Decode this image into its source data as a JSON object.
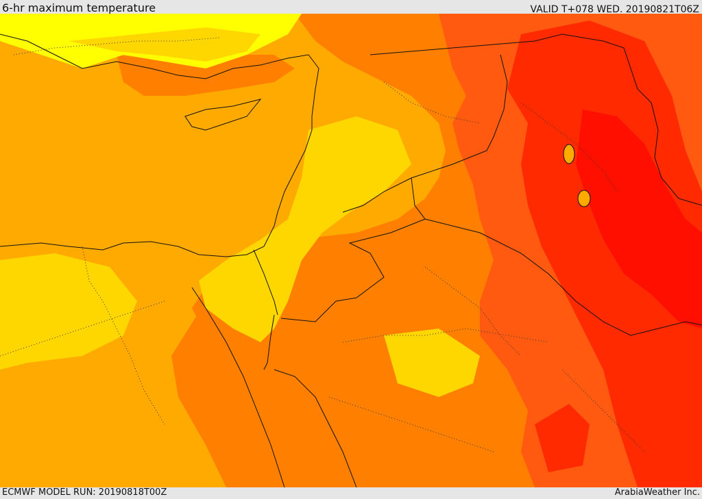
{
  "header": {
    "title": "6-hr maximum temperature",
    "valid": "VALID T+078 WED. 20190821T06Z"
  },
  "footer": {
    "model_run": "ECMWF MODEL RUN: 20190818T00Z",
    "credit": "ArabiaWeather Inc."
  },
  "colors": {
    "temp_yellow": "#ffff00",
    "temp_gold": "#ffd700",
    "temp_amber": "#ffaa00",
    "temp_orange": "#ff8000",
    "temp_dark_orange": "#ff5a10",
    "temp_red": "#ff2a00",
    "temp_deep_red": "#ff0f00",
    "border": "#111111"
  }
}
